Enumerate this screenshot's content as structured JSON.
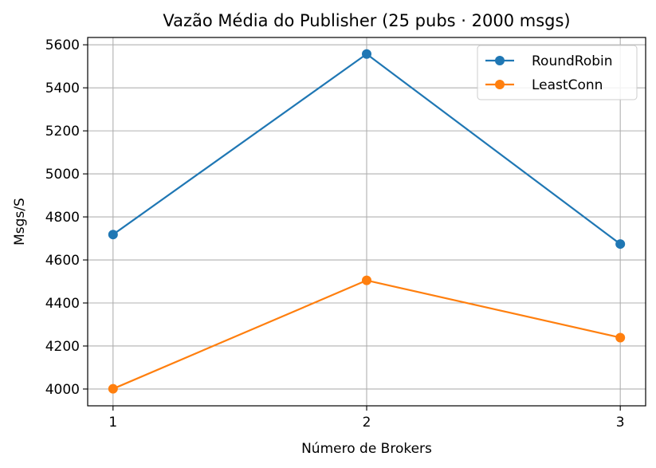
{
  "chart_data": {
    "type": "line",
    "title": "Vazão Média do Publisher (25 pubs · 2000 msgs)",
    "xlabel": "Número de Brokers",
    "ylabel": "Msgs/S",
    "x": [
      1,
      2,
      3
    ],
    "x_ticks": [
      "1",
      "2",
      "3"
    ],
    "y_ticks": [
      4000,
      4200,
      4400,
      4600,
      4800,
      5000,
      5200,
      5400,
      5600
    ],
    "xlim": [
      0.9,
      3.1
    ],
    "ylim": [
      3922,
      5634
    ],
    "grid": true,
    "legend_position": "top-right",
    "series": [
      {
        "name": "RoundRobin",
        "color": "#1f77b4",
        "marker": "circle",
        "values": [
          4718,
          5557,
          4674
        ]
      },
      {
        "name": "LeastConn",
        "color": "#ff7f0e",
        "marker": "circle",
        "values": [
          4001,
          4505,
          4239
        ]
      }
    ]
  }
}
